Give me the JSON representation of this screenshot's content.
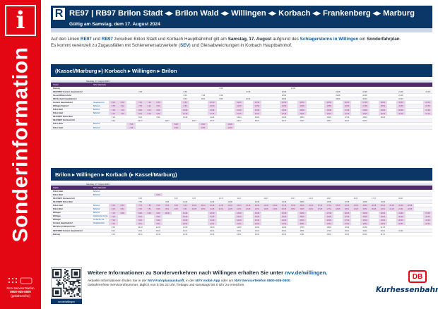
{
  "sidebar": {
    "icon": "info-icon",
    "icon_glyph": "i",
    "title": "Sonderinformation",
    "footer_lines": [
      "NVV-ServiceTelefon",
      "0800-939-0800",
      "(gebührenfrei)"
    ]
  },
  "header": {
    "r_mark": "R",
    "route": "RE97 | RB97 Brilon Stadt ◂▸ Brilon Wald ◂▸ Willingen ◂▸ Korbach ◂▸ Frankenberg ◂▸ Marburg",
    "validity": "Gültig am Samstag, dem 17. August 2024"
  },
  "intro": {
    "p1_a": "Auf den Linien ",
    "line1": "RE97",
    "p1_b": " und ",
    "line2": "RB97",
    "p1_c": " zwischen Brilon Stadt und Korbach Hauptbahnhof gilt am ",
    "date": "Samstag, 17. August",
    "p1_d": " aufgrund des ",
    "event": "Schlagersterns in Willingen",
    "p1_e": " ein ",
    "plan": "Sonderfahrplan",
    "p1_f": ".",
    "p2_a": "Es kommt vereinzelt zu Zugausfällen mit Schienenersatzverkehr (",
    "sev": "SEV",
    "p2_b": ") und Gleisabweichungen in Korbach Hauptbahnhof."
  },
  "section1": {
    "title": "(Kassel/Marburg ▸) Korbach ▸ Willingen ▸ Brilon",
    "table_title": "Samstag, 17. August 2024",
    "head": {
      "station": "Station",
      "line": "SEV Haltestelle"
    },
    "rows": [
      {
        "station": "Marburg",
        "line": "",
        "cells": [
          "",
          "",
          "",
          "",
          "",
          "",
          "",
          "",
          "",
          "",
          "",
          "",
          "6:49",
          "",
          "",
          "",
          "",
          "",
          "",
          "",
          "11:39",
          "",
          "",
          "",
          "",
          "",
          "",
          "",
          "",
          "",
          "",
          "",
          "",
          "",
          "",
          ""
        ]
      },
      {
        "station": "RE97/RB97 Korbach Hauptbahnhof",
        "line": "",
        "cells": [
          "",
          "",
          "",
          "7:28",
          "",
          "",
          "",
          "",
          "8:28",
          "",
          "",
          "",
          "",
          "",
          "",
          "17:28",
          "",
          "",
          "",
          "18:28",
          "",
          "",
          "",
          "",
          "",
          "19:28",
          "",
          "",
          "20:28",
          "",
          "",
          "",
          "21:28",
          "",
          "",
          "23:28"
        ]
      },
      {
        "station": "Kassel-Wilhelmshöhe",
        "line": "",
        "cells": [
          "",
          "",
          "",
          "",
          "",
          "",
          "",
          "",
          "6:43",
          "",
          "7:48",
          "",
          "8:48",
          "",
          "",
          "",
          "",
          "",
          "",
          "18:00",
          "",
          "",
          "",
          "",
          "",
          "19:48",
          "",
          "",
          "20:48",
          "",
          "",
          "",
          "21:48",
          "",
          "",
          ""
        ]
      },
      {
        "station": "RB4 Korbach Hauptbahnhof",
        "line": "",
        "cells": [
          "",
          "",
          "",
          "",
          "",
          "",
          "",
          "",
          "8:04",
          "",
          "8:31",
          "",
          "9:04",
          "",
          "",
          "10:31",
          "",
          "",
          "",
          "18:04",
          "",
          "",
          "",
          "",
          "",
          "19:04",
          "",
          "",
          "20:04",
          "",
          "",
          "",
          "21:04",
          "",
          "",
          ""
        ]
      },
      {
        "station": "Korbach Hauptbahnhof",
        "line": "Hauptbahnhof",
        "cells": [
          "6:26",
          "6:30",
          "",
          "7:30",
          "7:32",
          "8:30",
          "",
          "",
          "9:30",
          "",
          "",
          "10:30",
          "",
          "",
          "11:30",
          "",
          "12:30",
          "",
          "",
          "13:30",
          "",
          "14:30",
          "",
          "",
          "15:30",
          "",
          "16:30",
          "",
          "17:30",
          "",
          "18:30",
          "",
          "19:30",
          "",
          "",
          "21:30"
        ]
      },
      {
        "station": "Willingen Bahnhof",
        "line": "Bahnhof",
        "cells": [
          "6:59",
          "7:02",
          "",
          "7:59",
          "8:02",
          "8:59",
          "",
          "",
          "9:59",
          "",
          "",
          "10:59",
          "",
          "",
          "11:59",
          "",
          "12:59",
          "",
          "",
          "13:59",
          "",
          "14:59",
          "",
          "",
          "15:59",
          "",
          "16:59",
          "",
          "17:59",
          "",
          "18:59",
          "",
          "19:59",
          "",
          "",
          "21:59"
        ]
      },
      {
        "station": "Brilon Wald",
        "line": "Bahnhof",
        "cells": [
          "7:08",
          "7:13",
          "",
          "8:08",
          "8:13",
          "9:08",
          "",
          "",
          "10:08",
          "",
          "",
          "11:08",
          "",
          "",
          "12:08",
          "",
          "13:08",
          "",
          "",
          "14:08",
          "",
          "15:08",
          "",
          "",
          "16:08",
          "",
          "17:08",
          "",
          "18:08",
          "",
          "19:08",
          "",
          "20:08",
          "",
          "",
          "22:08"
        ]
      },
      {
        "station": "Brilon Stadt",
        "line": "Bahnhof",
        "cells": [
          "7:15",
          "7:19",
          "",
          "8:15",
          "8:19",
          "9:15",
          "",
          "",
          "10:15",
          "",
          "",
          "11:15",
          "",
          "",
          "12:15",
          "",
          "13:15",
          "",
          "",
          "14:15",
          "",
          "15:15",
          "",
          "",
          "16:15",
          "",
          "17:15",
          "",
          "18:15",
          "",
          "19:15",
          "",
          "20:15",
          "",
          "",
          "22:15"
        ]
      },
      {
        "station": "RE17/RE57 Brilon Wald",
        "line": "",
        "cells": [
          "7:24",
          "",
          "",
          "8:24",
          "",
          "9:24",
          "",
          "",
          "10:24",
          "",
          "",
          "11:24",
          "",
          "",
          "12:24",
          "",
          "13:24",
          "",
          "",
          "14:24",
          "",
          "15:24",
          "",
          "",
          "16:24",
          "",
          "17:24",
          "",
          "18:24",
          "",
          "19:24",
          "",
          "",
          "",
          "",
          ""
        ]
      },
      {
        "station": "RE17/RE57 Dortmund Hbf",
        "line": "",
        "cells": [
          "9:42",
          "",
          "",
          "10:17",
          "",
          "",
          "11:17",
          "",
          "",
          "12:17",
          "",
          "13:17",
          "",
          "",
          "14:17",
          "",
          "15:17",
          "",
          "",
          "16:17",
          "",
          "17:17",
          "",
          "",
          "18:17",
          "",
          "19:17",
          "",
          "20:17",
          "",
          "",
          "",
          "",
          "",
          "",
          ""
        ]
      },
      {
        "station": "Brilon Wald",
        "line": "Bahnhof",
        "cells": [
          "",
          "",
          "7:26",
          "",
          "",
          "",
          "",
          "8:26",
          "",
          "",
          "9:26",
          "",
          "",
          "10:26",
          "",
          "",
          "",
          "",
          "",
          "",
          "",
          "",
          "",
          "",
          "",
          "",
          "",
          "",
          "",
          "",
          "",
          "",
          "",
          "",
          "",
          ""
        ]
      },
      {
        "station": "Brilon Stadt",
        "line": "Bahnhof",
        "cells": [
          "",
          "",
          "7:35",
          "",
          "",
          "",
          "",
          "8:35",
          "",
          "",
          "9:35",
          "",
          "",
          "10:35",
          "",
          "",
          "",
          "",
          "",
          "",
          "",
          "",
          "",
          "",
          "",
          "",
          "",
          "",
          "",
          "",
          "",
          "",
          "",
          "",
          "",
          ""
        ]
      }
    ]
  },
  "section2": {
    "title": "Brilon ▸ Willingen ▸ Korbach (▸ Kassel/Marburg)",
    "table_title": "Samstag, 17. August 2024",
    "head": {
      "station": "Station",
      "line": "SEV Haltestelle"
    },
    "rows": [
      {
        "station": "Brilon Stadt",
        "line": "Bahnhof",
        "cells": [
          "",
          "",
          "",
          "",
          "",
          "",
          "",
          "",
          "",
          "",
          "",
          "",
          "",
          "",
          "",
          "",
          "",
          "",
          "",
          "",
          "",
          "",
          "",
          "",
          "",
          "",
          "",
          "",
          "",
          "",
          "",
          "",
          "",
          "",
          "",
          ""
        ]
      },
      {
        "station": "Brilon Wald",
        "line": "Bahnhof",
        "cells": [
          "",
          "",
          "",
          "",
          "",
          "8:13",
          "",
          "",
          "",
          "",
          "",
          "",
          "",
          "",
          "",
          "",
          "",
          "",
          "",
          "",
          "",
          "",
          "",
          "",
          "",
          "",
          "",
          "",
          "",
          "",
          "",
          "",
          "",
          "",
          "",
          ""
        ]
      },
      {
        "station": "RE17/RE57 Dortmund Hbf",
        "line": "",
        "cells": [
          "",
          "",
          "",
          "6:35",
          "",
          "",
          "",
          "8:17",
          "",
          "9:17",
          "",
          "",
          "10:17",
          "",
          "11:17",
          "",
          "",
          "12:17",
          "",
          "",
          "13:17",
          "",
          "14:17",
          "",
          "15:17",
          "",
          "",
          "16:17",
          "",
          "17:17",
          "",
          "",
          "18:17",
          "",
          "",
          ""
        ]
      },
      {
        "station": "RE17/RE57 Brilon Wald",
        "line": "",
        "cells": [
          "",
          "",
          "",
          "7:59",
          "",
          "",
          "9:36",
          "",
          "11:20",
          "",
          "",
          "11:36",
          "",
          "12:36",
          "",
          "",
          "13:36",
          "",
          "",
          "14:36",
          "",
          "15:36",
          "",
          "",
          "16:36",
          "",
          "17:36",
          "",
          "18:36",
          "",
          "19:36",
          "",
          "",
          "",
          "",
          ""
        ]
      },
      {
        "station": "Brilon Stadt",
        "line": "Bahnhof",
        "cells": [
          "6:19",
          "6:44",
          "",
          "7:19",
          "7:44",
          "8:19",
          "8:44",
          "9:19",
          "9:44",
          "10:19",
          "10:44",
          "11:19",
          "11:44",
          "12:19",
          "12:44",
          "13:19",
          "13:44",
          "14:19",
          "14:44",
          "15:19",
          "15:44",
          "16:19",
          "16:44",
          "17:19",
          "17:44",
          "18:19",
          "18:44",
          "19:19",
          "19:44",
          "20:19",
          "20:44",
          "21:19",
          "21:44",
          "22:19",
          "",
          ""
        ]
      },
      {
        "station": "Brilon Wald",
        "line": "Bahnhof",
        "cells": [
          "6:25",
          "6:51",
          "",
          "7:25",
          "7:51",
          "8:25",
          "8:51",
          "9:25",
          "9:51",
          "10:25",
          "10:51",
          "11:25",
          "11:51",
          "12:25",
          "12:51",
          "13:25",
          "13:51",
          "14:25",
          "14:51",
          "15:25",
          "15:51",
          "16:25",
          "16:51",
          "17:25",
          "17:51",
          "18:25",
          "18:51",
          "19:25",
          "19:51",
          "20:25",
          "20:51",
          "21:25",
          "21:51",
          "22:25",
          "",
          ""
        ]
      },
      {
        "station": "Willingen",
        "line": "Bahnhof",
        "cells": [
          "7:08",
          "6:36",
          "",
          "8:08",
          "9:36",
          "9:08",
          "10:36",
          "",
          "11:36",
          "",
          "",
          "12:36",
          "",
          "",
          "13:36",
          "",
          "14:36",
          "",
          "",
          "15:36",
          "",
          "16:36",
          "",
          "",
          "17:36",
          "",
          "18:36",
          "",
          "19:36",
          "",
          "20:36",
          "",
          "21:36",
          "",
          "",
          "23:36"
        ]
      },
      {
        "station": "Willingen",
        "line": "Katholische Kirche",
        "cells": [
          "7:20",
          "",
          "",
          "8:20",
          "",
          "9:20",
          "",
          "",
          "10:20",
          "",
          "",
          "11:20",
          "",
          "",
          "12:20",
          "",
          "13:20",
          "",
          "",
          "14:20",
          "",
          "15:20",
          "",
          "",
          "16:20",
          "",
          "17:20",
          "",
          "18:20",
          "",
          "19:20",
          "",
          "20:20",
          "",
          "",
          "22:20"
        ]
      },
      {
        "station": "Willingen",
        "line": "Korbacher Str.",
        "cells": [
          "7:40",
          "",
          "",
          "8:40",
          "",
          "9:40",
          "",
          "",
          "10:40",
          "",
          "",
          "11:40",
          "",
          "",
          "12:40",
          "",
          "13:40",
          "",
          "",
          "14:40",
          "",
          "15:40",
          "",
          "",
          "16:40",
          "",
          "17:40",
          "",
          "18:40",
          "",
          "19:40",
          "",
          "20:40",
          "",
          "",
          "22:40"
        ]
      },
      {
        "station": "Korbach Hauptbahnhof",
        "line": "Hauptbahnhof",
        "cells": [
          "7:51",
          "",
          "",
          "8:51",
          "",
          "9:51",
          "",
          "",
          "10:51",
          "",
          "",
          "11:51",
          "",
          "",
          "12:51",
          "",
          "13:51",
          "",
          "",
          "14:51",
          "",
          "15:51",
          "",
          "",
          "16:51",
          "",
          "17:51",
          "",
          "18:51",
          "",
          "19:51",
          "",
          "20:51",
          "",
          "",
          "22:51"
        ]
      },
      {
        "station": "RB4 Kassel-Wilhelmshöhe",
        "line": "",
        "cells": [
          "9:03",
          "",
          "",
          "10:03",
          "",
          "11:03",
          "",
          "",
          "12:03",
          "",
          "",
          "13:03",
          "",
          "",
          "14:03",
          "",
          "15:03",
          "",
          "",
          "16:03",
          "",
          "17:03",
          "",
          "",
          "18:03",
          "",
          "19:03",
          "",
          "20:03",
          "",
          "21:03",
          "",
          "",
          "",
          "",
          ""
        ]
      },
      {
        "station": "RE97/RB97 Korbach Hauptbahnhof",
        "line": "",
        "cells": [
          "8:21",
          "",
          "",
          "9:21",
          "",
          "10:21",
          "",
          "",
          "11:21",
          "",
          "",
          "12:21",
          "",
          "",
          "13:21",
          "",
          "14:21",
          "",
          "",
          "15:21",
          "",
          "16:21",
          "",
          "",
          "17:21",
          "",
          "18:21",
          "",
          "19:21",
          "",
          "20:21",
          "",
          "21:21",
          "",
          "",
          ""
        ]
      },
      {
        "station": "Marburg",
        "line": "",
        "cells": [
          "9:31",
          "",
          "",
          "10:31",
          "",
          "11:31",
          "",
          "",
          "12:31",
          "",
          "",
          "13:31",
          "",
          "",
          "14:31",
          "",
          "15:31",
          "",
          "",
          "16:31",
          "",
          "17:31",
          "",
          "",
          "18:31",
          "",
          "19:31",
          "",
          "20:31",
          "",
          "21:31",
          "",
          "",
          "",
          "",
          ""
        ]
      }
    ]
  },
  "footer": {
    "title_a": "Weitere Informationen zu Sonderverkehren nach Willingen erhalten Sie unter ",
    "title_link": "nvv.de/willingen",
    "title_b": ".",
    "line1_a": "Aktuelle Informationen finden Sie in der ",
    "app1": "NVV-Fahrplanauskunft",
    "line1_b": ", in der ",
    "app2": "NVV mobil-App",
    "line1_c": " oder am ",
    "hotline": "NVV-ServiceTelefon 0800-939-0800",
    "line1_d": ".",
    "line2": "Gebührenfreie Servicerufnummer, täglich von 5 bis 22 Uhr, freitags und samstags bis 0 Uhr zu erreichen.",
    "db_logo": "DB",
    "brand": "Kurhessenbahn",
    "qr_caption": "nvv.de/willingen"
  },
  "colors": {
    "red": "#e30613",
    "navy": "#0a3765",
    "sev": "#8a2b8a",
    "link": "#0b5aa3"
  },
  "icons": [
    "info-icon",
    "qr-code",
    "db-logo"
  ]
}
